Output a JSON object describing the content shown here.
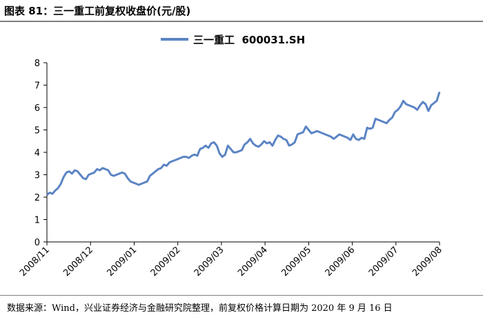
{
  "header": {
    "title": "图表 81：三一重工前复权收盘价(元/股)"
  },
  "footer": {
    "source": "数据来源：Wind，兴业证券经济与金融研究院整理，前复权价格计算日期为 2020 年 9 月 16 日"
  },
  "colors": {
    "series": "#5b84c4",
    "axis": "#000000",
    "divider": "#7f7f7f"
  },
  "chart_data": {
    "type": "line",
    "title": "",
    "xlabel": "",
    "ylabel": "",
    "legend": "top-center",
    "grid": false,
    "ylim": [
      0,
      8
    ],
    "yticks": [
      "0",
      "1",
      "2",
      "3",
      "4",
      "5",
      "6",
      "7",
      "8"
    ],
    "xticks": [
      "2008/11",
      "2008/12",
      "2009/01",
      "2009/02",
      "2009/03",
      "2009/04",
      "2009/05",
      "2009/06",
      "2009/07",
      "2009/08"
    ],
    "series": [
      {
        "name": "三一重工  600031.SH",
        "x_start": "2008/11",
        "x_end": "2009/08",
        "values": [
          2.1,
          2.2,
          2.15,
          2.3,
          2.4,
          2.6,
          2.9,
          3.1,
          3.15,
          3.05,
          3.2,
          3.15,
          3.0,
          2.85,
          2.8,
          3.0,
          3.05,
          3.1,
          3.25,
          3.2,
          3.3,
          3.25,
          3.2,
          3.0,
          2.95,
          3.0,
          3.05,
          3.1,
          3.05,
          2.85,
          2.7,
          2.65,
          2.6,
          2.55,
          2.6,
          2.65,
          2.7,
          2.95,
          3.05,
          3.15,
          3.25,
          3.3,
          3.45,
          3.4,
          3.55,
          3.6,
          3.65,
          3.7,
          3.75,
          3.8,
          3.8,
          3.75,
          3.85,
          3.9,
          3.85,
          4.15,
          4.2,
          4.3,
          4.2,
          4.4,
          4.45,
          4.3,
          3.95,
          3.8,
          3.9,
          4.3,
          4.15,
          4.0,
          4.0,
          4.05,
          4.1,
          4.35,
          4.45,
          4.6,
          4.4,
          4.3,
          4.25,
          4.35,
          4.5,
          4.4,
          4.45,
          4.3,
          4.55,
          4.75,
          4.7,
          4.6,
          4.55,
          4.3,
          4.35,
          4.45,
          4.8,
          4.85,
          4.9,
          5.15,
          5.0,
          4.85,
          4.9,
          4.95,
          4.9,
          4.85,
          4.8,
          4.75,
          4.7,
          4.6,
          4.7,
          4.8,
          4.75,
          4.7,
          4.65,
          4.55,
          4.8,
          4.6,
          4.55,
          4.65,
          4.6,
          5.1,
          5.05,
          5.1,
          5.5,
          5.45,
          5.4,
          5.35,
          5.3,
          5.45,
          5.55,
          5.8,
          5.9,
          6.05,
          6.3,
          6.15,
          6.1,
          6.05,
          6.0,
          5.9,
          6.1,
          6.25,
          6.15,
          5.85,
          6.1,
          6.2,
          6.3,
          6.7
        ]
      }
    ]
  }
}
